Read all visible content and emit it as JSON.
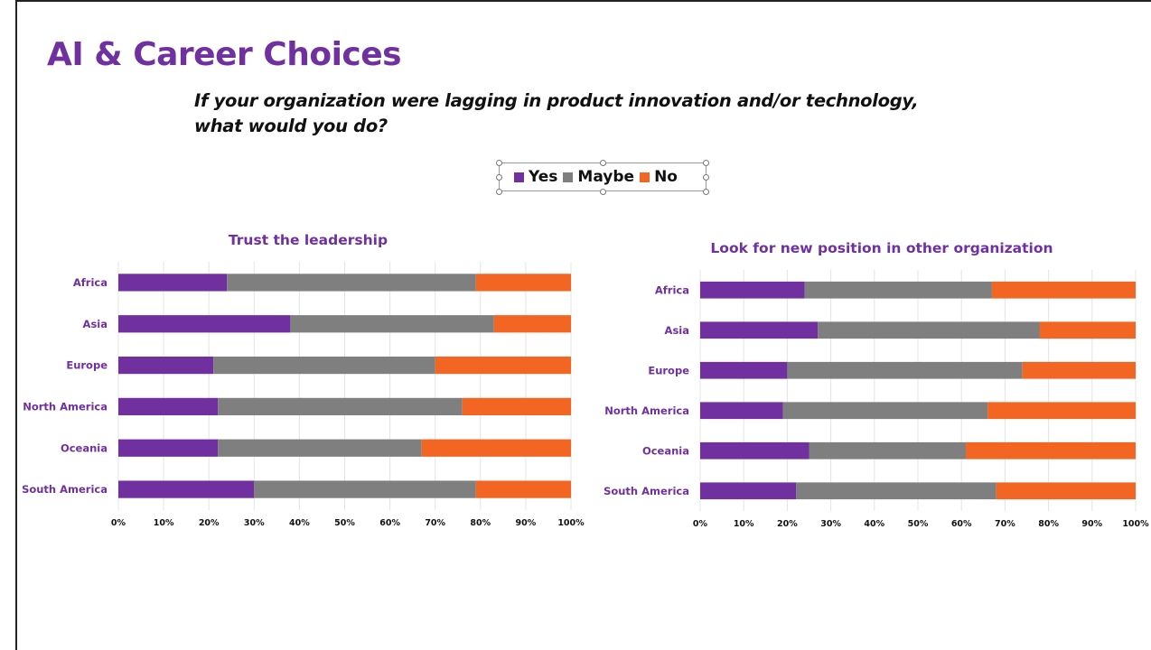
{
  "slide": {
    "title": "AI & Career Choices",
    "question_line1": "If your organization were lagging in product innovation and/or technology,",
    "question_line2": "what would you do?",
    "title_color": "#7030a0"
  },
  "legend": [
    {
      "name": "Yes",
      "color": "#7030a0"
    },
    {
      "name": "Maybe",
      "color": "#7f7f7f"
    },
    {
      "name": "No",
      "color": "#f26522"
    }
  ],
  "chart_data": [
    {
      "type": "bar",
      "stacked": "percent",
      "orientation": "horizontal",
      "title": "Trust the leadership",
      "categories": [
        "Africa",
        "Asia",
        "Europe",
        "North America",
        "Oceania",
        "South America"
      ],
      "series": [
        {
          "name": "Yes",
          "values": [
            24,
            38,
            21,
            22,
            22,
            30
          ]
        },
        {
          "name": "Maybe",
          "values": [
            55,
            45,
            49,
            54,
            45,
            49
          ]
        },
        {
          "name": "No",
          "values": [
            21,
            17,
            30,
            24,
            33,
            21
          ]
        }
      ],
      "x_ticks": [
        "0%",
        "10%",
        "20%",
        "30%",
        "40%",
        "50%",
        "60%",
        "70%",
        "80%",
        "90%",
        "100%"
      ],
      "xlim": [
        0,
        100
      ],
      "grid": true,
      "legend_position": "top"
    },
    {
      "type": "bar",
      "stacked": "percent",
      "orientation": "horizontal",
      "title": "Look for new position in other organization",
      "categories": [
        "Africa",
        "Asia",
        "Europe",
        "North America",
        "Oceania",
        "South America"
      ],
      "series": [
        {
          "name": "Yes",
          "values": [
            24,
            27,
            20,
            19,
            25,
            22
          ]
        },
        {
          "name": "Maybe",
          "values": [
            43,
            51,
            54,
            47,
            36,
            46
          ]
        },
        {
          "name": "No",
          "values": [
            33,
            22,
            26,
            34,
            39,
            32
          ]
        }
      ],
      "x_ticks": [
        "0%",
        "10%",
        "20%",
        "30%",
        "40%",
        "50%",
        "60%",
        "70%",
        "80%",
        "90%",
        "100%"
      ],
      "xlim": [
        0,
        100
      ],
      "grid": true,
      "legend_position": "top"
    }
  ]
}
